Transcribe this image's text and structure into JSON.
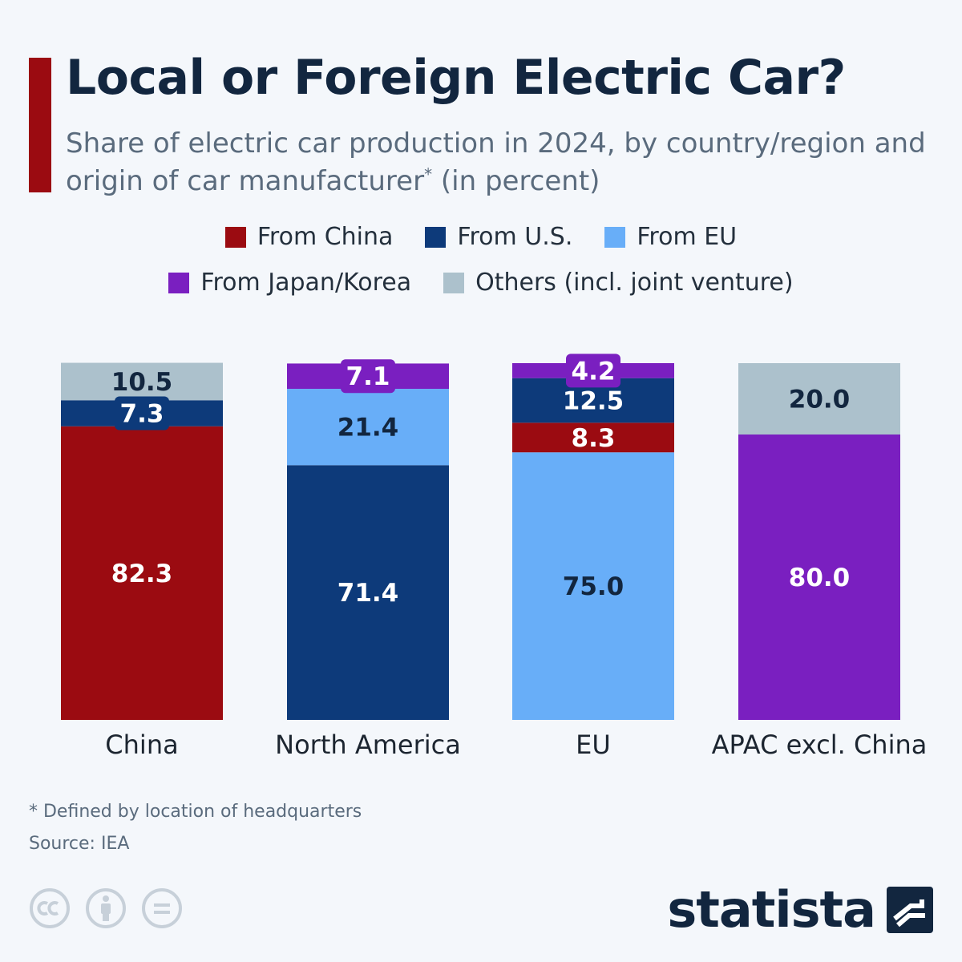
{
  "header": {
    "title": "Local or Foreign Electric Car?",
    "subtitle_main": "Share of electric car production in 2024, by country/region and origin of car manufacturer",
    "subtitle_sup": "*",
    "subtitle_tail": " (in percent)"
  },
  "colors": {
    "accent": "#9b0b11",
    "from_china": "#9b0b11",
    "from_us": "#0d3a7a",
    "from_eu": "#68aef8",
    "from_japan_korea": "#7a1fc0",
    "others": "#acc1cc"
  },
  "legend": {
    "items": [
      {
        "label": "From China",
        "color": "#9b0b11"
      },
      {
        "label": "From U.S.",
        "color": "#0d3a7a"
      },
      {
        "label": "From EU",
        "color": "#68aef8"
      },
      {
        "label": "From Japan/Korea",
        "color": "#7a1fc0"
      },
      {
        "label": "Others (incl. joint venture)",
        "color": "#acc1cc"
      }
    ]
  },
  "chart_data": {
    "type": "bar",
    "stacked": true,
    "categories": [
      "China",
      "North America",
      "EU",
      "APAC excl. China"
    ],
    "series": [
      {
        "name": "From China",
        "color": "#9b0b11",
        "values": [
          82.3,
          null,
          8.3,
          null
        ]
      },
      {
        "name": "From U.S.",
        "color": "#0d3a7a",
        "values": [
          7.3,
          71.4,
          12.5,
          null
        ]
      },
      {
        "name": "From EU",
        "color": "#68aef8",
        "values": [
          null,
          21.4,
          75.0,
          null
        ]
      },
      {
        "name": "From Japan/Korea",
        "color": "#7a1fc0",
        "values": [
          null,
          7.1,
          4.2,
          80.0
        ]
      },
      {
        "name": "Others (incl. joint venture)",
        "color": "#acc1cc",
        "values": [
          10.5,
          null,
          null,
          20.0
        ]
      }
    ],
    "stack_order": [
      [
        "From China",
        "From U.S.",
        "Others (incl. joint venture)"
      ],
      [
        "From U.S.",
        "From EU",
        "From Japan/Korea"
      ],
      [
        "From EU",
        "From China",
        "From U.S.",
        "From Japan/Korea"
      ],
      [
        "From Japan/Korea",
        "Others (incl. joint venture)"
      ]
    ],
    "data_labels": [
      [
        "82.3",
        "7.3",
        "10.5"
      ],
      [
        "71.4",
        "21.4",
        "7.1"
      ],
      [
        "75.0",
        "8.3",
        "12.5",
        "4.2"
      ],
      [
        "80.0",
        "20.0"
      ]
    ],
    "ylim": [
      0,
      100
    ],
    "grid": false
  },
  "footer": {
    "footnote": "* Defined by location of headquarters",
    "source": "Source: IEA",
    "brand": "statista",
    "license_icons": [
      "cc-icon",
      "attribution-icon",
      "no-derivatives-icon"
    ]
  }
}
